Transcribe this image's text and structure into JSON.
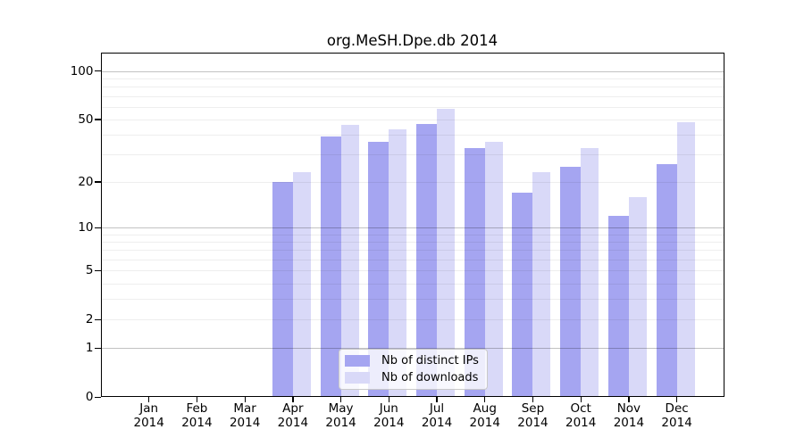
{
  "chart_data": {
    "type": "bar",
    "title": "org.MeSH.Dpe.db 2014",
    "year": "2014",
    "months": [
      "Jan",
      "Feb",
      "Mar",
      "Apr",
      "May",
      "Jun",
      "Jul",
      "Aug",
      "Sep",
      "Oct",
      "Nov",
      "Dec"
    ],
    "categories": [
      "Jan 2014",
      "Feb 2014",
      "Mar 2014",
      "Apr 2014",
      "May 2014",
      "Jun 2014",
      "Jul 2014",
      "Aug 2014",
      "Sep 2014",
      "Oct 2014",
      "Nov 2014",
      "Dec 2014"
    ],
    "series": [
      {
        "name": "Nb of distinct IPs",
        "color": "#a5a5f1",
        "values": [
          0,
          0,
          0,
          20,
          39,
          36,
          47,
          33,
          17,
          25,
          12,
          26
        ]
      },
      {
        "name": "Nb of downloads",
        "color": "#d9d9f8",
        "values": [
          0,
          0,
          0,
          23,
          46,
          43,
          58,
          36,
          23,
          33,
          16,
          48
        ]
      }
    ],
    "y_ticks": [
      0,
      1,
      2,
      5,
      10,
      20,
      50,
      100
    ],
    "y_scale": "log10(1+x)",
    "ylim": [
      0,
      130
    ],
    "grid": true,
    "grid_major_values": [
      1,
      10,
      100
    ],
    "grid_minor_values": [
      2,
      3,
      4,
      5,
      6,
      7,
      8,
      9,
      20,
      30,
      40,
      50,
      60,
      70,
      80,
      90
    ],
    "legend_position": "inside-bottom-center"
  }
}
